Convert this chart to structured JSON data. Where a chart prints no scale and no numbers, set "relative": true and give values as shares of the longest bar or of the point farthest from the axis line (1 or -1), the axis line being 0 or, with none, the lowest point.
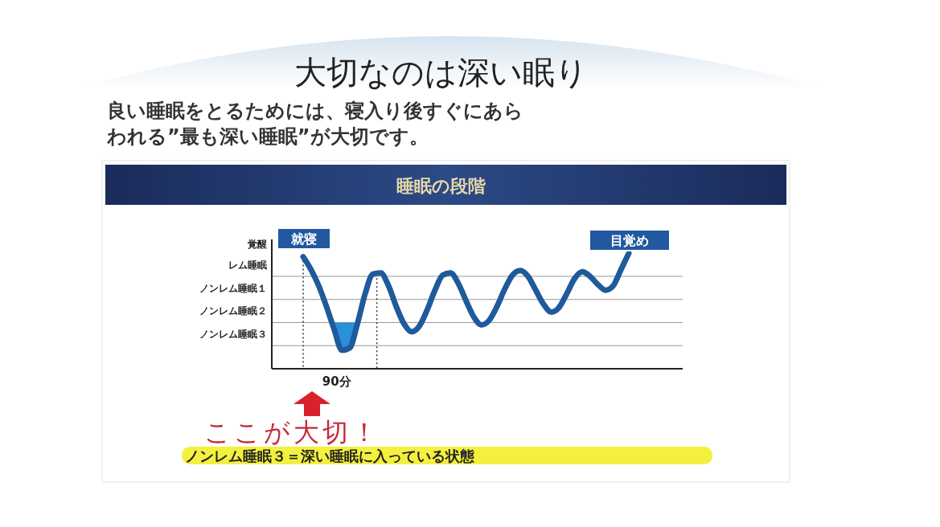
{
  "chart_data": {
    "type": "line",
    "title": "睡眠の段階",
    "relative": true,
    "categories": [
      null,
      null,
      null,
      null,
      null,
      null,
      null,
      null,
      null,
      null,
      null,
      null,
      null,
      null,
      null,
      null,
      null,
      null,
      null,
      null,
      null,
      null,
      null,
      null,
      null,
      null,
      null,
      null,
      null,
      null,
      null,
      null,
      null,
      null,
      null,
      null,
      null,
      null,
      null,
      null,
      null,
      null,
      null
    ],
    "series": [
      {
        "color": "#1f5a9a",
        "values": [
          0.97,
          0.86,
          0.72,
          0.54,
          0.34,
          0.16,
          0.18,
          0.39,
          0.65,
          0.82,
          0.83,
          0.72,
          0.54,
          0.39,
          0.32,
          0.37,
          0.51,
          0.68,
          0.81,
          0.83,
          0.74,
          0.59,
          0.45,
          0.38,
          0.42,
          0.54,
          0.69,
          0.81,
          0.85,
          0.8,
          0.68,
          0.56,
          0.49,
          0.53,
          0.65,
          0.78,
          0.84,
          0.8,
          0.73,
          0.68,
          0.72,
          0.86,
          1
        ],
        "lower": [
          null,
          null,
          null,
          null,
          0.34,
          0.16,
          0.18,
          0.39,
          null,
          null,
          null,
          null,
          null,
          null,
          null,
          null,
          null,
          null,
          null,
          null,
          null,
          null,
          null,
          null,
          null,
          null,
          null,
          null,
          null,
          null,
          null,
          null,
          null,
          null,
          null,
          null,
          null,
          null,
          null,
          null,
          null,
          null,
          null
        ],
        "upper": [
          null,
          null,
          null,
          null,
          0.4,
          0.4,
          0.4,
          0.4,
          null,
          null,
          null,
          null,
          null,
          null,
          null,
          null,
          null,
          null,
          null,
          null,
          null,
          null,
          null,
          null,
          null,
          null,
          null,
          null,
          null,
          null,
          null,
          null,
          null,
          null,
          null,
          null,
          null,
          null,
          null,
          null,
          null,
          null,
          null
        ]
      }
    ],
    "grid": "y",
    "marker": "none",
    "line_style": "solid",
    "annotations": [
      "大切なのは深い眠り",
      "良い睡眠をとるためには、寝入り後すぐにあらわれる”最も深い睡眠”が大切です。",
      "覚醒",
      "レム睡眠",
      "ノンレム睡眠１",
      "ノンレム睡眠２",
      "ノンレム睡眠３",
      "就寝",
      "目覚め",
      "90分",
      "ここが大切！",
      "ノンレム睡眠３＝深い睡眠に入っている状態"
    ]
  }
}
